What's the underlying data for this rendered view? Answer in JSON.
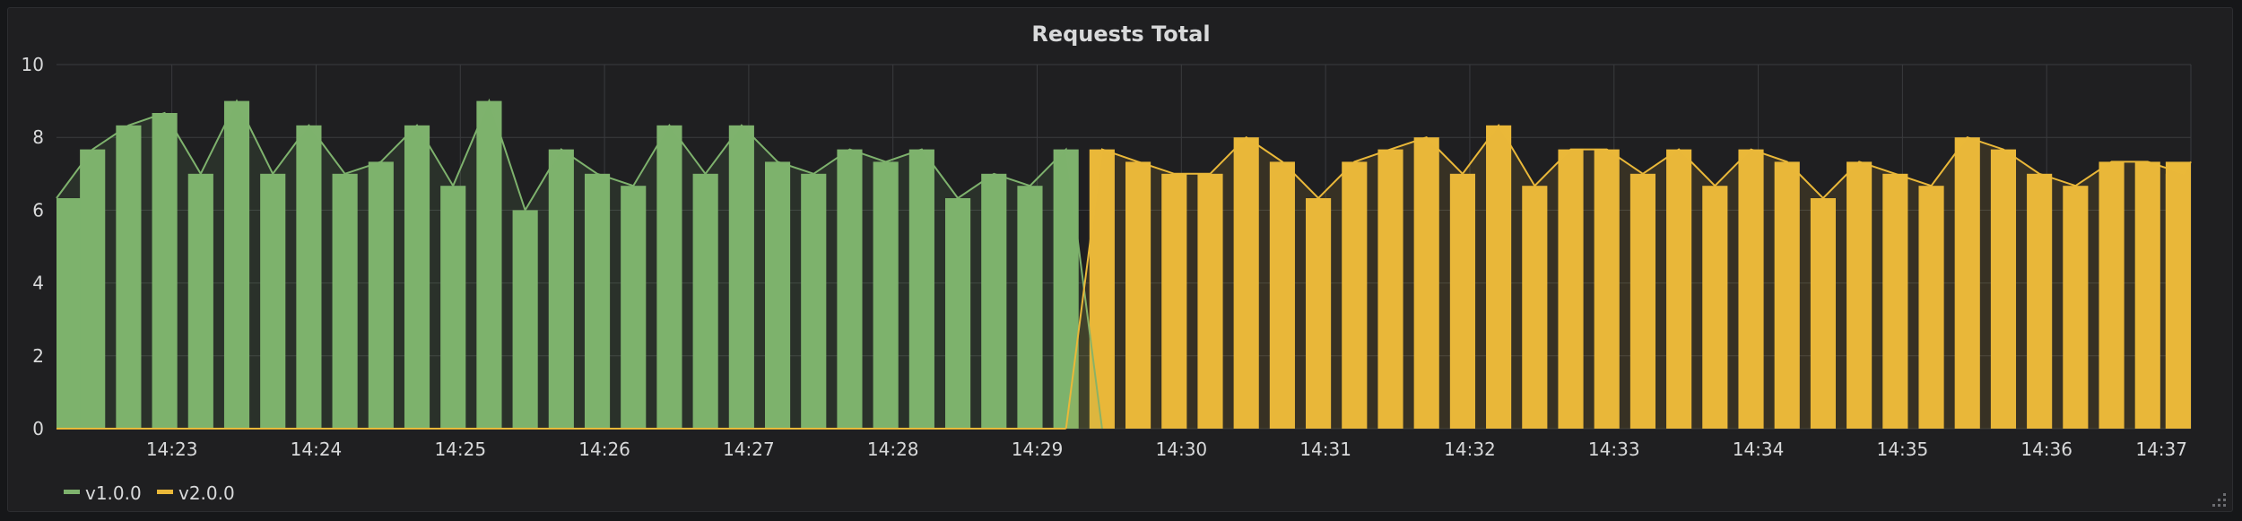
{
  "panel": {
    "title": "Requests Total"
  },
  "chart_data": {
    "type": "bar",
    "title": "Requests Total",
    "xlabel": "",
    "ylabel": "",
    "ylim": [
      0,
      10
    ],
    "y_ticks": [
      "0",
      "2",
      "4",
      "6",
      "8",
      "10"
    ],
    "x_range": [
      "14:22:12",
      "14:37:00"
    ],
    "x_ticks": [
      "14:23",
      "14:24",
      "14:25",
      "14:26",
      "14:27",
      "14:28",
      "14:29",
      "14:30",
      "14:31",
      "14:32",
      "14:33",
      "14:34",
      "14:35",
      "14:36",
      "14:37"
    ],
    "grid": true,
    "legend_position": "bottom-left",
    "series": [
      {
        "name": "v1.0.0",
        "color": "#7eb26d",
        "points": [
          [
            "14:22:12",
            6.33
          ],
          [
            "14:22:27",
            7.67
          ],
          [
            "14:22:42",
            8.33
          ],
          [
            "14:22:57",
            8.67
          ],
          [
            "14:23:12",
            7.0
          ],
          [
            "14:23:27",
            9.0
          ],
          [
            "14:23:42",
            7.0
          ],
          [
            "14:23:57",
            8.33
          ],
          [
            "14:24:12",
            7.0
          ],
          [
            "14:24:27",
            7.33
          ],
          [
            "14:24:42",
            8.33
          ],
          [
            "14:24:57",
            6.67
          ],
          [
            "14:25:12",
            9.0
          ],
          [
            "14:25:27",
            6.0
          ],
          [
            "14:25:42",
            7.67
          ],
          [
            "14:25:57",
            7.0
          ],
          [
            "14:26:12",
            6.67
          ],
          [
            "14:26:27",
            8.33
          ],
          [
            "14:26:42",
            7.0
          ],
          [
            "14:26:57",
            8.33
          ],
          [
            "14:27:12",
            7.33
          ],
          [
            "14:27:27",
            7.0
          ],
          [
            "14:27:42",
            7.67
          ],
          [
            "14:27:57",
            7.33
          ],
          [
            "14:28:12",
            7.67
          ],
          [
            "14:28:27",
            6.33
          ],
          [
            "14:28:42",
            7.0
          ],
          [
            "14:28:57",
            6.67
          ],
          [
            "14:29:12",
            7.67
          ],
          [
            "14:29:27",
            0
          ]
        ]
      },
      {
        "name": "v2.0.0",
        "color": "#eab839",
        "points": [
          [
            "14:29:12",
            0
          ],
          [
            "14:29:27",
            7.67
          ],
          [
            "14:29:42",
            7.33
          ],
          [
            "14:29:57",
            7.0
          ],
          [
            "14:30:12",
            7.0
          ],
          [
            "14:30:27",
            8.0
          ],
          [
            "14:30:42",
            7.33
          ],
          [
            "14:30:57",
            6.33
          ],
          [
            "14:31:12",
            7.33
          ],
          [
            "14:31:27",
            7.67
          ],
          [
            "14:31:42",
            8.0
          ],
          [
            "14:31:57",
            7.0
          ],
          [
            "14:32:12",
            8.33
          ],
          [
            "14:32:27",
            6.67
          ],
          [
            "14:32:42",
            7.67
          ],
          [
            "14:32:57",
            7.67
          ],
          [
            "14:33:12",
            7.0
          ],
          [
            "14:33:27",
            7.67
          ],
          [
            "14:33:42",
            6.67
          ],
          [
            "14:33:57",
            7.67
          ],
          [
            "14:34:12",
            7.33
          ],
          [
            "14:34:27",
            6.33
          ],
          [
            "14:34:42",
            7.33
          ],
          [
            "14:34:57",
            7.0
          ],
          [
            "14:35:12",
            6.67
          ],
          [
            "14:35:27",
            8.0
          ],
          [
            "14:35:42",
            7.67
          ],
          [
            "14:35:57",
            7.0
          ],
          [
            "14:36:12",
            6.67
          ],
          [
            "14:36:27",
            7.33
          ],
          [
            "14:36:42",
            7.33
          ],
          [
            "14:36:57",
            7.0
          ],
          [
            "14:37:00",
            7.33
          ]
        ]
      }
    ]
  }
}
